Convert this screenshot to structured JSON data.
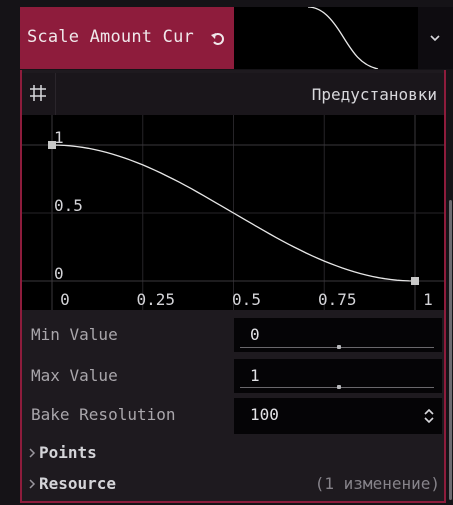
{
  "property": {
    "label": "Scale Amount Cur",
    "reset_icon": "reset-arrow-icon",
    "type_icon": "curve-type-icon",
    "dropdown_icon": "chevron-down-icon"
  },
  "toolbar": {
    "grid_icon": "grid-snap-icon",
    "presets_label": "Предустановки"
  },
  "curve_editor": {
    "x_ticks": [
      "0",
      "0.25",
      "0.5",
      "0.75",
      "1"
    ],
    "y_ticks": [
      "1",
      "0.5",
      "0"
    ]
  },
  "chart_data": {
    "type": "line",
    "xlim": [
      0,
      1
    ],
    "ylim": [
      0,
      1
    ],
    "grid": true,
    "x": [
      0,
      0.25,
      0.5,
      0.75,
      1
    ],
    "y": [
      1,
      0.86,
      0.5,
      0.14,
      0
    ],
    "control_points": [
      [
        0,
        1
      ],
      [
        1,
        0
      ]
    ]
  },
  "fields": {
    "min_value": {
      "label": "Min Value",
      "value": "0",
      "slider": 0.5
    },
    "max_value": {
      "label": "Max Value",
      "value": "1",
      "slider": 0.5
    },
    "bake_resolution": {
      "label": "Bake Resolution",
      "value": "100"
    }
  },
  "sections": {
    "points": "Points",
    "resource": "Resource",
    "resource_changes": "(1 изменение)"
  },
  "colors": {
    "accent": "#8e1c3c",
    "curve": "#e6e6e6",
    "point": "#c8c8c8"
  }
}
